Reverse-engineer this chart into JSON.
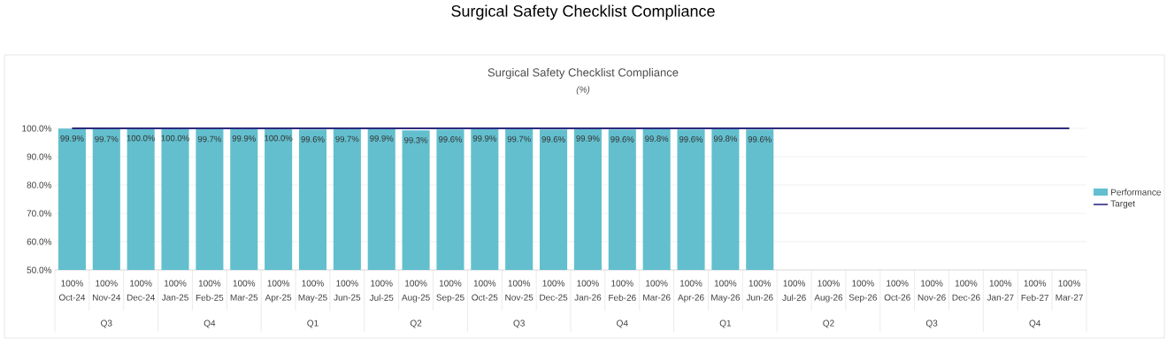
{
  "chart_data": {
    "type": "bar",
    "title": "Surgical Safety Checklist Compliance",
    "subtitle": "Surgical Safety Checklist Compliance",
    "categories": [
      "Oct-24",
      "Nov-24",
      "Dec-24",
      "Jan-25",
      "Feb-25",
      "Mar-25",
      "Apr-25",
      "May-25",
      "Jun-25",
      "Jul-25",
      "Aug-25",
      "Sep-25",
      "Oct-25",
      "Nov-25",
      "Dec-25",
      "Jan-26",
      "Feb-26",
      "Mar-26",
      "Apr-26",
      "May-26",
      "Jun-26",
      "Jul-26",
      "Aug-26",
      "Sep-26",
      "Oct-26",
      "Nov-26",
      "Dec-26",
      "Jan-27",
      "Feb-27",
      "Mar-27"
    ],
    "series": [
      {
        "name": "Performance",
        "color": "#63bfce",
        "values": [
          99.9,
          99.7,
          100.0,
          100.0,
          99.7,
          99.9,
          100.0,
          99.6,
          99.7,
          99.9,
          99.3,
          99.6,
          99.9,
          99.7,
          99.6,
          99.9,
          99.6,
          99.8,
          99.6,
          99.8,
          99.6,
          null,
          null,
          null,
          null,
          null,
          null,
          null,
          null,
          null
        ],
        "value_labels": [
          "99.9%",
          "99.7%",
          "100.0%",
          "100.0%",
          "99.7%",
          "99.9%",
          "100.0%",
          "99.6%",
          "99.7%",
          "99.9%",
          "99.3%",
          "99.6%",
          "99.9%",
          "99.7%",
          "99.6%",
          "99.9%",
          "99.6%",
          "99.8%",
          "99.6%",
          "99.8%",
          "99.6%",
          null,
          null,
          null,
          null,
          null,
          null,
          null,
          null,
          null
        ]
      },
      {
        "name": "Target",
        "type": "line",
        "color": "#2e2a7f",
        "values": [
          100,
          100,
          100,
          100,
          100,
          100,
          100,
          100,
          100,
          100,
          100,
          100,
          100,
          100,
          100,
          100,
          100,
          100,
          100,
          100,
          100,
          100,
          100,
          100,
          100,
          100,
          100,
          100,
          100,
          100
        ],
        "value_labels": [
          "100%",
          "100%",
          "100%",
          "100%",
          "100%",
          "100%",
          "100%",
          "100%",
          "100%",
          "100%",
          "100%",
          "100%",
          "100%",
          "100%",
          "100%",
          "100%",
          "100%",
          "100%",
          "100%",
          "100%",
          "100%",
          "100%",
          "100%",
          "100%",
          "100%",
          "100%",
          "100%",
          "100%",
          "100%",
          "100%"
        ]
      }
    ],
    "ylim": [
      50,
      100
    ],
    "yticks": [
      {
        "value": 50,
        "label": "50.0%"
      },
      {
        "value": 60,
        "label": "60.0%"
      },
      {
        "value": 70,
        "label": "70.0%"
      },
      {
        "value": 80,
        "label": "80.0%"
      },
      {
        "value": 90,
        "label": "90.0%"
      },
      {
        "value": 100,
        "label": "100.0%"
      }
    ],
    "grid": "y",
    "legend": "right",
    "annotations": [
      "(%)",
      "Q3",
      "Q4",
      "Q1",
      "Q2",
      "Q3",
      "Q4",
      "Q1",
      "Q2",
      "Q3",
      "Q4"
    ]
  }
}
